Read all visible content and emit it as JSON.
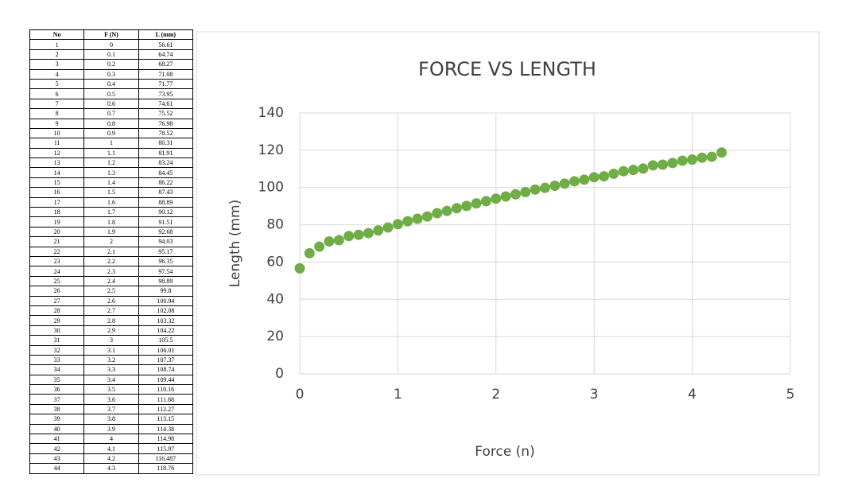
{
  "table": {
    "header": [
      "No",
      "F (N)",
      "L (mm)"
    ],
    "rows": [
      [
        1,
        0,
        56.61
      ],
      [
        2,
        0.1,
        64.74
      ],
      [
        3,
        0.2,
        68.27
      ],
      [
        4,
        0.3,
        71.08
      ],
      [
        5,
        0.4,
        71.77
      ],
      [
        6,
        0.5,
        73.95
      ],
      [
        7,
        0.6,
        74.61
      ],
      [
        8,
        0.7,
        75.52
      ],
      [
        9,
        0.8,
        76.98
      ],
      [
        10,
        0.9,
        78.52
      ],
      [
        11,
        1,
        80.31
      ],
      [
        12,
        1.1,
        81.91
      ],
      [
        13,
        1.2,
        83.24
      ],
      [
        14,
        1.3,
        84.45
      ],
      [
        15,
        1.4,
        86.22
      ],
      [
        16,
        1.5,
        87.43
      ],
      [
        17,
        1.6,
        88.89
      ],
      [
        18,
        1.7,
        90.12
      ],
      [
        19,
        1.8,
        91.51
      ],
      [
        20,
        1.9,
        92.68
      ],
      [
        21,
        2,
        94.03
      ],
      [
        22,
        2.1,
        95.17
      ],
      [
        23,
        2.2,
        96.35
      ],
      [
        24,
        2.3,
        97.54
      ],
      [
        25,
        2.4,
        98.89
      ],
      [
        26,
        2.5,
        99.8
      ],
      [
        27,
        2.6,
        100.94
      ],
      [
        28,
        2.7,
        102.08
      ],
      [
        29,
        2.8,
        103.32
      ],
      [
        30,
        2.9,
        104.22
      ],
      [
        31,
        3,
        105.5
      ],
      [
        32,
        3.1,
        106.01
      ],
      [
        33,
        3.2,
        107.37
      ],
      [
        34,
        3.3,
        108.74
      ],
      [
        35,
        3.4,
        109.44
      ],
      [
        36,
        3.5,
        110.16
      ],
      [
        37,
        3.6,
        111.88
      ],
      [
        38,
        3.7,
        112.27
      ],
      [
        39,
        3.8,
        113.15
      ],
      [
        40,
        3.9,
        114.38
      ],
      [
        41,
        4,
        114.98
      ],
      [
        42,
        4.1,
        115.97
      ],
      [
        43,
        4.2,
        116.487
      ],
      [
        44,
        4.3,
        118.76
      ]
    ]
  },
  "chart_data": {
    "type": "scatter",
    "title": "FORCE VS LENGTH",
    "x_label": "Force (n)",
    "y_label": "Length (mm)",
    "x": [
      0,
      0.1,
      0.2,
      0.3,
      0.4,
      0.5,
      0.6,
      0.7,
      0.8,
      0.9,
      1,
      1.1,
      1.2,
      1.3,
      1.4,
      1.5,
      1.6,
      1.7,
      1.8,
      1.9,
      2,
      2.1,
      2.2,
      2.3,
      2.4,
      2.5,
      2.6,
      2.7,
      2.8,
      2.9,
      3,
      3.1,
      3.2,
      3.3,
      3.4,
      3.5,
      3.6,
      3.7,
      3.8,
      3.9,
      4,
      4.1,
      4.2,
      4.3
    ],
    "values": [
      56.61,
      64.74,
      68.27,
      71.08,
      71.77,
      73.95,
      74.61,
      75.52,
      76.98,
      78.52,
      80.31,
      81.91,
      83.24,
      84.45,
      86.22,
      87.43,
      88.89,
      90.12,
      91.51,
      92.68,
      94.03,
      95.17,
      96.35,
      97.54,
      98.89,
      99.8,
      100.94,
      102.08,
      103.32,
      104.22,
      105.5,
      106.01,
      107.37,
      108.74,
      109.44,
      110.16,
      111.88,
      112.27,
      113.15,
      114.38,
      114.98,
      115.97,
      116.487,
      118.76
    ],
    "color": "#70ad47",
    "xlim": [
      0,
      5
    ],
    "xticks": [
      0,
      1,
      2,
      3,
      4,
      5
    ],
    "ylim": [
      0,
      140
    ],
    "yticks": [
      0,
      20,
      40,
      60,
      80,
      100,
      120,
      140
    ],
    "grid": true
  }
}
